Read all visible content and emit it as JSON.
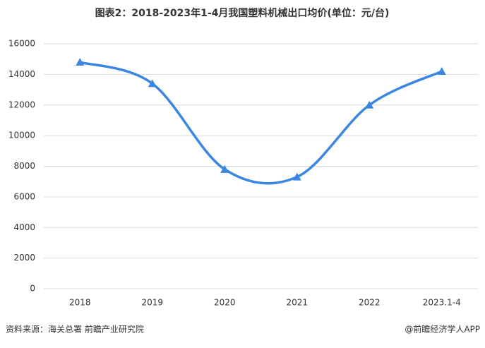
{
  "chart_data": {
    "type": "line",
    "title": "图表2：2018-2023年1-4月我国塑料机械出口均价(单位：元/台)",
    "categories": [
      "2018",
      "2019",
      "2020",
      "2021",
      "2022",
      "2023.1-4"
    ],
    "series": [
      {
        "name": "出口均价",
        "color": "#3b86e0",
        "values": [
          14800,
          13400,
          7800,
          7300,
          12000,
          14200
        ]
      }
    ],
    "ylim": [
      0,
      16000
    ],
    "yticks": [
      0,
      2000,
      4000,
      6000,
      8000,
      10000,
      12000,
      14000,
      16000
    ],
    "grid": true,
    "source": "资料来源：海关总署 前瞻产业研究院",
    "credit": "@前瞻经济学人APP"
  }
}
